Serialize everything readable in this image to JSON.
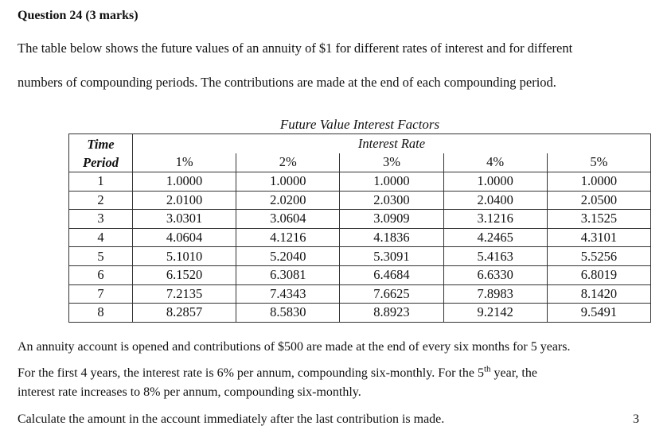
{
  "question": {
    "title": "Question 24 (3 marks)",
    "intro_line1": "The table below shows the future values of an annuity of $1 for different rates of interest and for different",
    "intro_line2": "numbers of compounding periods. The contributions are made at the end of each compounding period."
  },
  "table": {
    "caption": "Future Value Interest Factors",
    "period_header_line1": "Time",
    "period_header_line2": "Period",
    "rate_header": "Interest Rate",
    "rates": [
      "1%",
      "2%",
      "3%",
      "4%",
      "5%"
    ],
    "rows": [
      {
        "period": "1",
        "values": [
          "1.0000",
          "1.0000",
          "1.0000",
          "1.0000",
          "1.0000"
        ]
      },
      {
        "period": "2",
        "values": [
          "2.0100",
          "2.0200",
          "2.0300",
          "2.0400",
          "2.0500"
        ]
      },
      {
        "period": "3",
        "values": [
          "3.0301",
          "3.0604",
          "3.0909",
          "3.1216",
          "3.1525"
        ]
      },
      {
        "period": "4",
        "values": [
          "4.0604",
          "4.1216",
          "4.1836",
          "4.2465",
          "4.3101"
        ]
      },
      {
        "period": "5",
        "values": [
          "5.1010",
          "5.2040",
          "5.3091",
          "5.4163",
          "5.5256"
        ]
      },
      {
        "period": "6",
        "values": [
          "6.1520",
          "6.3081",
          "6.4684",
          "6.6330",
          "6.8019"
        ]
      },
      {
        "period": "7",
        "values": [
          "7.2135",
          "7.4343",
          "7.6625",
          "7.8983",
          "8.1420"
        ]
      },
      {
        "period": "8",
        "values": [
          "8.2857",
          "8.5830",
          "8.8923",
          "9.2142",
          "9.5491"
        ]
      }
    ]
  },
  "body": {
    "line1": "An annuity account is opened and contributions of $500 are made at the end of every six months for 5 years.",
    "line2_before": "For the first 4 years, the interest rate is 6% per annum, compounding six-monthly. For the 5",
    "line2_sup": "th",
    "line2_after": " year, the",
    "line3": "interest rate increases to 8% per annum, compounding six-monthly.",
    "line4": "Calculate the amount in the account immediately after the last contribution is made.",
    "marks": "3"
  }
}
